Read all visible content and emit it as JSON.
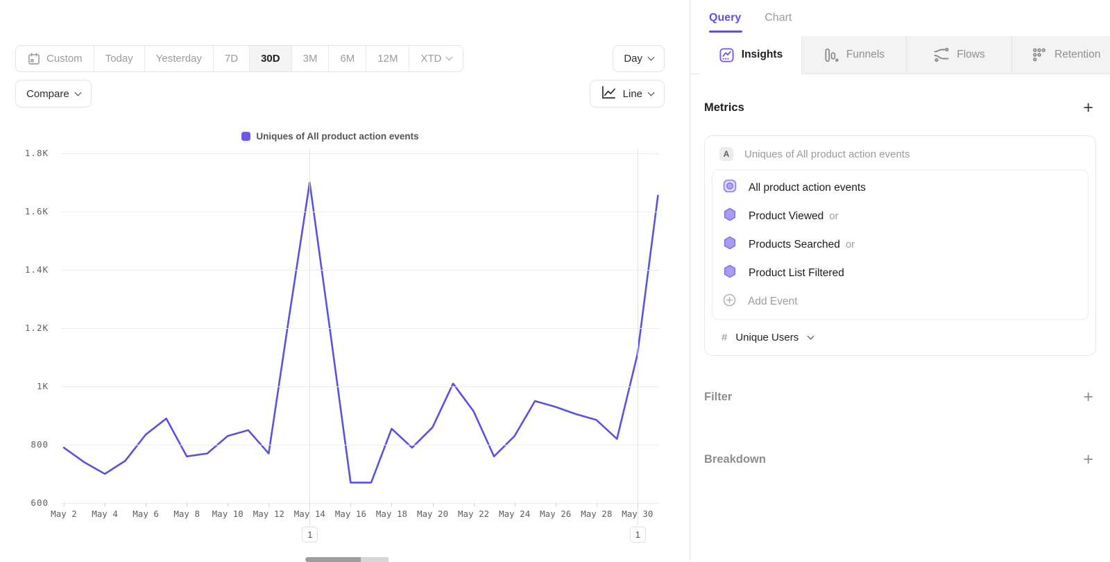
{
  "colors": {
    "accent": "#6a5ce8",
    "line": "#5b50e2",
    "legend_swatch": "#6a5be8"
  },
  "toolbar": {
    "ranges": [
      {
        "label": "Custom",
        "icon": "calendar-icon"
      },
      {
        "label": "Today"
      },
      {
        "label": "Yesterday"
      },
      {
        "label": "7D"
      },
      {
        "label": "30D"
      },
      {
        "label": "3M"
      },
      {
        "label": "6M"
      },
      {
        "label": "12M"
      },
      {
        "label": "XTD",
        "chevron": true
      }
    ],
    "selected_range": "30D",
    "granularity_label": "Day",
    "compare_label": "Compare",
    "chart_type_label": "Line"
  },
  "chart_data": {
    "type": "line",
    "legend": "Uniques of All product action events",
    "x": [
      "May 2",
      "May 3",
      "May 4",
      "May 5",
      "May 6",
      "May 7",
      "May 8",
      "May 9",
      "May 10",
      "May 11",
      "May 12",
      "May 13",
      "May 14",
      "May 15",
      "May 16",
      "May 17",
      "May 18",
      "May 19",
      "May 20",
      "May 21",
      "May 22",
      "May 23",
      "May 24",
      "May 25",
      "May 26",
      "May 27",
      "May 28",
      "May 29",
      "May 30",
      "May 31"
    ],
    "values": [
      790,
      740,
      700,
      745,
      835,
      890,
      760,
      770,
      830,
      850,
      770,
      1240,
      1700,
      1190,
      670,
      670,
      855,
      790,
      860,
      1010,
      915,
      760,
      830,
      950,
      930,
      905,
      885,
      820,
      1110,
      1655
    ],
    "y_ticks": [
      "1.8K",
      "1.6K",
      "1.4K",
      "1.2K",
      "1K",
      "800",
      "600"
    ],
    "y_tick_values": [
      1800,
      1600,
      1400,
      1200,
      1000,
      800,
      600
    ],
    "ylim": [
      600,
      1800
    ],
    "x_label_step": 2,
    "grid": true,
    "legend_position": "top-center",
    "vertical_gridline_indices": [
      12,
      28
    ],
    "annotations": [
      {
        "label": "1",
        "day_index": 12
      },
      {
        "label": "1",
        "day_index": 28
      }
    ],
    "line_color": "#5b50e2"
  },
  "panel": {
    "top_tabs": {
      "query": "Query",
      "chart": "Chart",
      "active": "Query"
    },
    "view_tabs": [
      {
        "label": "Insights",
        "active": true
      },
      {
        "label": "Funnels",
        "active": false
      },
      {
        "label": "Flows",
        "active": false
      },
      {
        "label": "Retention",
        "active": false
      }
    ],
    "metrics": {
      "title": "Metrics",
      "add_label": "+",
      "letter_badge": "A",
      "summary": "Uniques of All product action events",
      "events": [
        {
          "name": "All product action events",
          "suffix": "",
          "icon": "custom-event-icon"
        },
        {
          "name": "Product Viewed",
          "suffix": "or",
          "icon": "hexagon-icon"
        },
        {
          "name": "Products Searched",
          "suffix": "or",
          "icon": "hexagon-icon"
        },
        {
          "name": "Product List Filtered",
          "suffix": "",
          "icon": "hexagon-icon"
        }
      ],
      "add_event_label": "Add Event",
      "measurement": {
        "symbol": "#",
        "label": "Unique Users"
      }
    },
    "filter": {
      "title": "Filter",
      "add_label": "+"
    },
    "breakdown": {
      "title": "Breakdown",
      "add_label": "+"
    }
  }
}
